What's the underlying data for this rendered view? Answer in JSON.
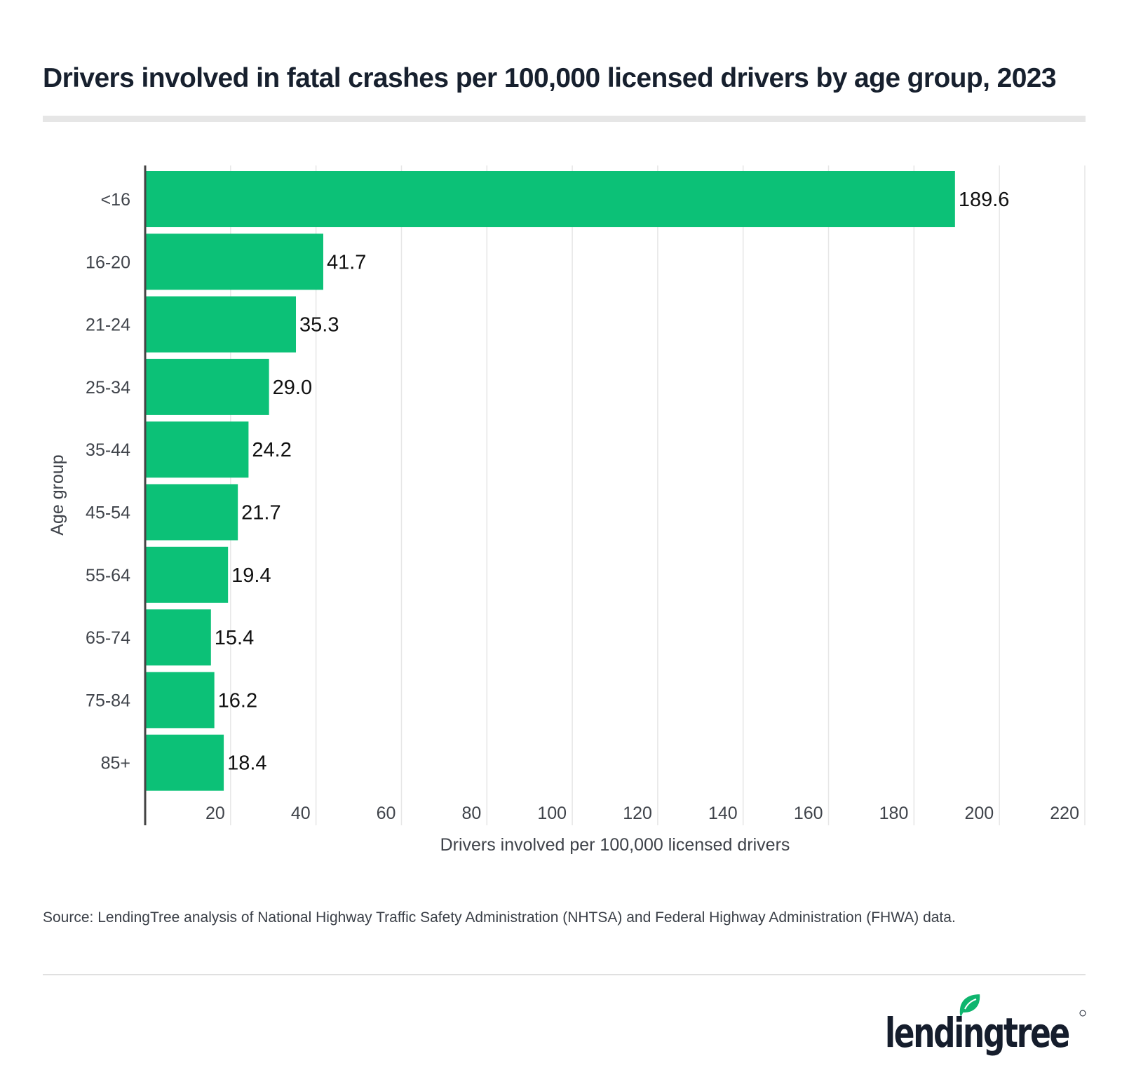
{
  "title": "Drivers involved in fatal crashes per 100,000 licensed drivers by age group, 2023",
  "source": "Source: LendingTree analysis of National Highway Traffic Safety Administration (NHTSA) and Federal Highway Administration (FHWA) data.",
  "logo_text": "lendingtree",
  "colors": {
    "bar": "#0cc177",
    "text": "#17202e",
    "grid": "#e6e6e6",
    "axis": "#444444",
    "logo_leaf": "#0fb56e"
  },
  "chart_data": {
    "type": "bar",
    "orientation": "horizontal",
    "title": "Drivers involved in fatal crashes per 100,000 licensed drivers by age group, 2023",
    "xlabel": "Drivers involved per 100,000 licensed drivers",
    "ylabel": "Age group",
    "categories": [
      "<16",
      "16-20",
      "21-24",
      "25-34",
      "35-44",
      "45-54",
      "55-64",
      "65-74",
      "75-84",
      "85+"
    ],
    "values": [
      189.6,
      41.7,
      35.3,
      29.0,
      24.2,
      21.7,
      19.4,
      15.4,
      16.2,
      18.4
    ],
    "value_labels": [
      "189.6",
      "41.7",
      "35.3",
      "29.0",
      "24.2",
      "21.7",
      "19.4",
      "15.4",
      "16.2",
      "18.4"
    ],
    "xticks": [
      20,
      40,
      60,
      80,
      100,
      120,
      140,
      160,
      180,
      200,
      220
    ],
    "xlim": [
      0,
      220
    ],
    "grid": true
  }
}
